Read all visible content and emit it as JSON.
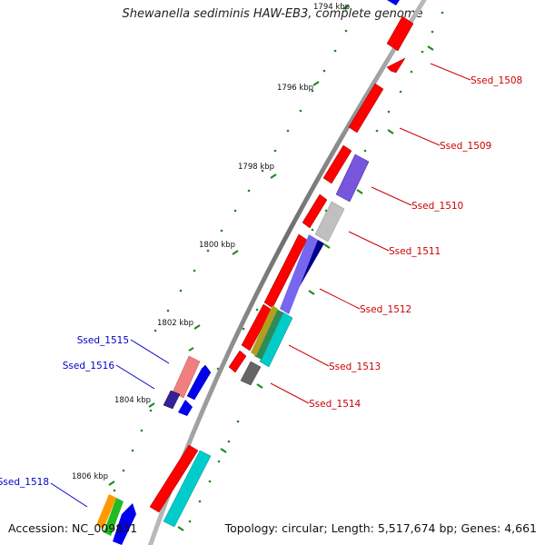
{
  "title": "Shewanella sediminis HAW-EB3, complete genome",
  "footer": {
    "accession": "Accession: NC_009831",
    "topology": "Topology: circular; Length: 5,517,674 bp; Genes: 4,661"
  },
  "colors": {
    "backbone": "#8a8a8a",
    "ticks": "#1f8a1f",
    "forward_label": "#cc0000",
    "reverse_label": "#0000cc"
  },
  "ticks": {
    "labels": [
      "1794 kbp",
      "1796 kbp",
      "1798 kbp",
      "1800 kbp",
      "1802 kbp",
      "1804 kbp",
      "1806 kbp"
    ]
  },
  "forward_genes": [
    {
      "label": "Ssed_1508",
      "color": "#ff0000"
    },
    {
      "label": "Ssed_1509",
      "color": "#ff0000"
    },
    {
      "label": "Ssed_1510",
      "color": "#ff0000"
    },
    {
      "label": "Ssed_1511",
      "color": "#ff0000"
    },
    {
      "label": "Ssed_1512",
      "color": "#ff0000"
    },
    {
      "label": "Ssed_1513",
      "color": "#ff0000"
    },
    {
      "label": "Ssed_1514",
      "color": "#ff0000"
    }
  ],
  "reverse_genes": [
    {
      "label": "Ssed_1515",
      "color": "#0000ff"
    },
    {
      "label": "Ssed_1516",
      "color": "#0000ff"
    },
    {
      "label": "Ssed_1518",
      "color": "#0000ff"
    }
  ]
}
